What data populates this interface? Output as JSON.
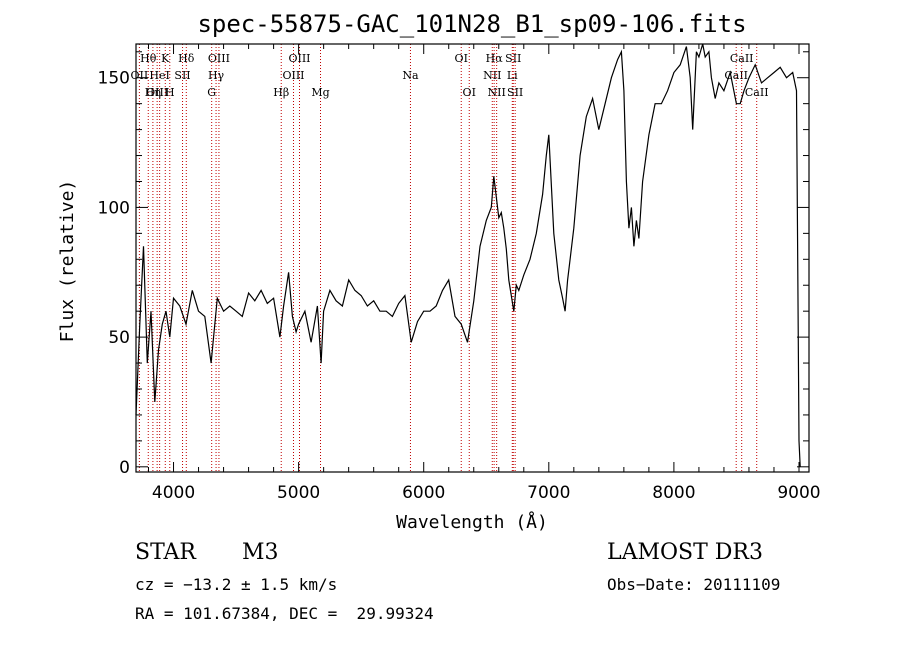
{
  "chart_data": {
    "type": "line",
    "title": "spec-55875-GAC_101N28_B1_sp09-106.fits",
    "xlabel": "Wavelength (Å)",
    "ylabel": "Flux (relative)",
    "xlim": [
      3700,
      9080
    ],
    "ylim": [
      -2,
      163
    ],
    "xticks": [
      4000,
      5000,
      6000,
      7000,
      8000,
      9000
    ],
    "yticks": [
      0,
      50,
      100,
      150
    ],
    "series": [
      {
        "name": "flux",
        "x": [
          3700,
          3730,
          3760,
          3790,
          3820,
          3850,
          3880,
          3910,
          3940,
          3970,
          4000,
          4050,
          4100,
          4150,
          4200,
          4250,
          4300,
          4350,
          4400,
          4450,
          4500,
          4550,
          4600,
          4650,
          4700,
          4750,
          4800,
          4850,
          4880,
          4920,
          4950,
          4980,
          5000,
          5050,
          5100,
          5150,
          5180,
          5200,
          5250,
          5300,
          5350,
          5400,
          5450,
          5500,
          5550,
          5600,
          5650,
          5700,
          5750,
          5800,
          5850,
          5900,
          5950,
          6000,
          6050,
          6100,
          6150,
          6200,
          6250,
          6300,
          6350,
          6400,
          6450,
          6500,
          6540,
          6560,
          6580,
          6600,
          6620,
          6640,
          6660,
          6680,
          6700,
          6720,
          6740,
          6760,
          6800,
          6850,
          6900,
          6950,
          6980,
          7000,
          7040,
          7080,
          7110,
          7130,
          7150,
          7170,
          7200,
          7250,
          7300,
          7350,
          7400,
          7450,
          7500,
          7550,
          7580,
          7600,
          7620,
          7640,
          7660,
          7680,
          7700,
          7720,
          7750,
          7800,
          7850,
          7900,
          7950,
          8000,
          8050,
          8100,
          8130,
          8150,
          8180,
          8200,
          8230,
          8250,
          8280,
          8300,
          8330,
          8360,
          8400,
          8450,
          8500,
          8530,
          8560,
          8600,
          8650,
          8700,
          8750,
          8800,
          8850,
          8900,
          8950,
          8980,
          9000,
          9010
        ],
        "values": [
          20,
          55,
          85,
          40,
          60,
          25,
          45,
          55,
          60,
          50,
          65,
          62,
          55,
          68,
          60,
          58,
          40,
          65,
          60,
          62,
          60,
          58,
          67,
          64,
          68,
          63,
          65,
          50,
          62,
          75,
          58,
          52,
          55,
          60,
          48,
          62,
          40,
          60,
          68,
          64,
          62,
          72,
          68,
          66,
          62,
          64,
          60,
          60,
          58,
          63,
          66,
          48,
          56,
          60,
          60,
          62,
          68,
          72,
          58,
          55,
          48,
          64,
          85,
          95,
          100,
          112,
          104,
          96,
          98,
          92,
          84,
          72,
          66,
          60,
          70,
          68,
          74,
          80,
          90,
          105,
          120,
          128,
          90,
          72,
          65,
          60,
          72,
          80,
          92,
          120,
          135,
          142,
          130,
          140,
          150,
          157,
          160,
          145,
          110,
          92,
          100,
          85,
          95,
          88,
          110,
          128,
          140,
          140,
          145,
          152,
          155,
          162,
          150,
          130,
          160,
          158,
          165,
          158,
          160,
          150,
          142,
          148,
          145,
          152,
          140,
          140,
          145,
          150,
          155,
          148,
          150,
          152,
          154,
          150,
          152,
          145,
          10,
          0
        ]
      }
    ],
    "lines": [
      {
        "name": "Hθ",
        "wave": 3798,
        "row": 1
      },
      {
        "name": "OII",
        "wave": 3727,
        "row": 2
      },
      {
        "name": "OIII",
        "wave": 3869,
        "row": 3
      },
      {
        "name": "HeI",
        "wave": 3889,
        "row": 2
      },
      {
        "name": "Hη",
        "wave": 3835,
        "row": 3
      },
      {
        "name": "K",
        "wave": 3934,
        "row": 1
      },
      {
        "name": "H",
        "wave": 3970,
        "row": 3
      },
      {
        "name": "SII",
        "wave": 4072,
        "row": 2
      },
      {
        "name": "Hδ",
        "wave": 4102,
        "row": 1
      },
      {
        "name": "OIII",
        "wave": 4363,
        "row": 1
      },
      {
        "name": "Hγ",
        "wave": 4340,
        "row": 2
      },
      {
        "name": "G",
        "wave": 4305,
        "row": 3
      },
      {
        "name": "Hβ",
        "wave": 4861,
        "row": 3
      },
      {
        "name": "OIII",
        "wave": 4959,
        "row": 2
      },
      {
        "name": "OIII",
        "wave": 5007,
        "row": 1
      },
      {
        "name": "Mg",
        "wave": 5175,
        "row": 3
      },
      {
        "name": "Na",
        "wave": 5894,
        "row": 2
      },
      {
        "name": "OI",
        "wave": 6300,
        "row": 1
      },
      {
        "name": "OI",
        "wave": 6364,
        "row": 3
      },
      {
        "name": "NII",
        "wave": 6548,
        "row": 2
      },
      {
        "name": "Hα",
        "wave": 6563,
        "row": 1
      },
      {
        "name": "NII",
        "wave": 6583,
        "row": 3
      },
      {
        "name": "Li",
        "wave": 6708,
        "row": 2
      },
      {
        "name": "SII",
        "wave": 6716,
        "row": 1
      },
      {
        "name": "SII",
        "wave": 6731,
        "row": 3
      },
      {
        "name": "CaII",
        "wave": 8498,
        "row": 2
      },
      {
        "name": "CaII",
        "wave": 8542,
        "row": 1
      },
      {
        "name": "CaII",
        "wave": 8662,
        "row": 3
      }
    ]
  },
  "info": {
    "object_class": "STAR",
    "subclass": "M3",
    "survey": "LAMOST DR3",
    "cz": "cz = −13.2 ± 1.5 km/s",
    "obs_date": "Obs−Date: 20111109",
    "radec": "RA = 101.67384, DEC =  29.99324"
  }
}
